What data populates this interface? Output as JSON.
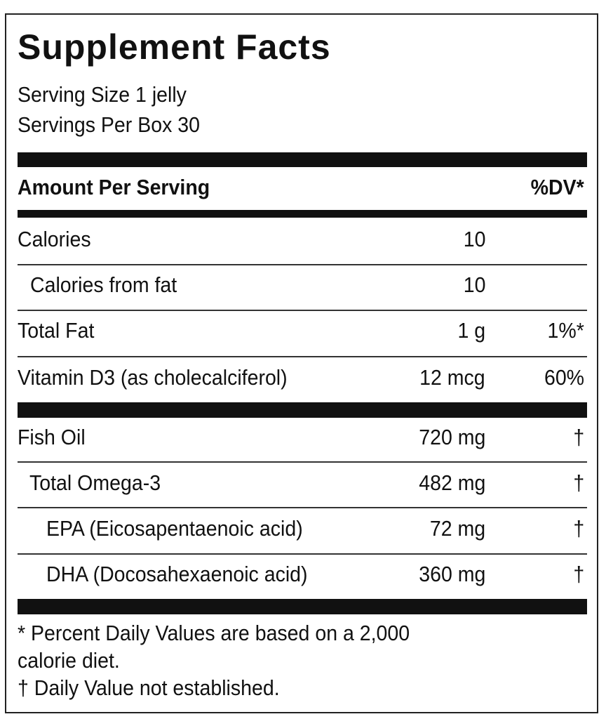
{
  "title": "Supplement Facts",
  "serving_size": "Serving Size 1 jelly",
  "servings_per": "Servings Per Box 30",
  "header": {
    "amount": "Amount Per Serving",
    "dv": "%DV*"
  },
  "group1": [
    {
      "label": "Calories",
      "amount": "10",
      "dv": ""
    },
    {
      "label": "Calories from fat",
      "amount": "10",
      "dv": ""
    },
    {
      "label": "Total Fat",
      "amount": "1 g",
      "dv": "1%*"
    },
    {
      "label": "Vitamin D3 (as cholecalciferol)",
      "amount": "12 mcg",
      "dv": "60%"
    }
  ],
  "group2": [
    {
      "label": "Fish Oil",
      "amount": "720 mg",
      "dv": "†"
    },
    {
      "label": "Total Omega-3",
      "amount": "482 mg",
      "dv": "†"
    },
    {
      "label": "EPA (Eicosapentaenoic acid)",
      "amount": "72 mg",
      "dv": "†"
    },
    {
      "label": "DHA (Docosahexaenoic acid)",
      "amount": "360 mg",
      "dv": "†"
    }
  ],
  "footnotes": [
    "* Percent Daily Values are based on a 2,000",
    "calorie diet.",
    " † Daily Value not established."
  ]
}
